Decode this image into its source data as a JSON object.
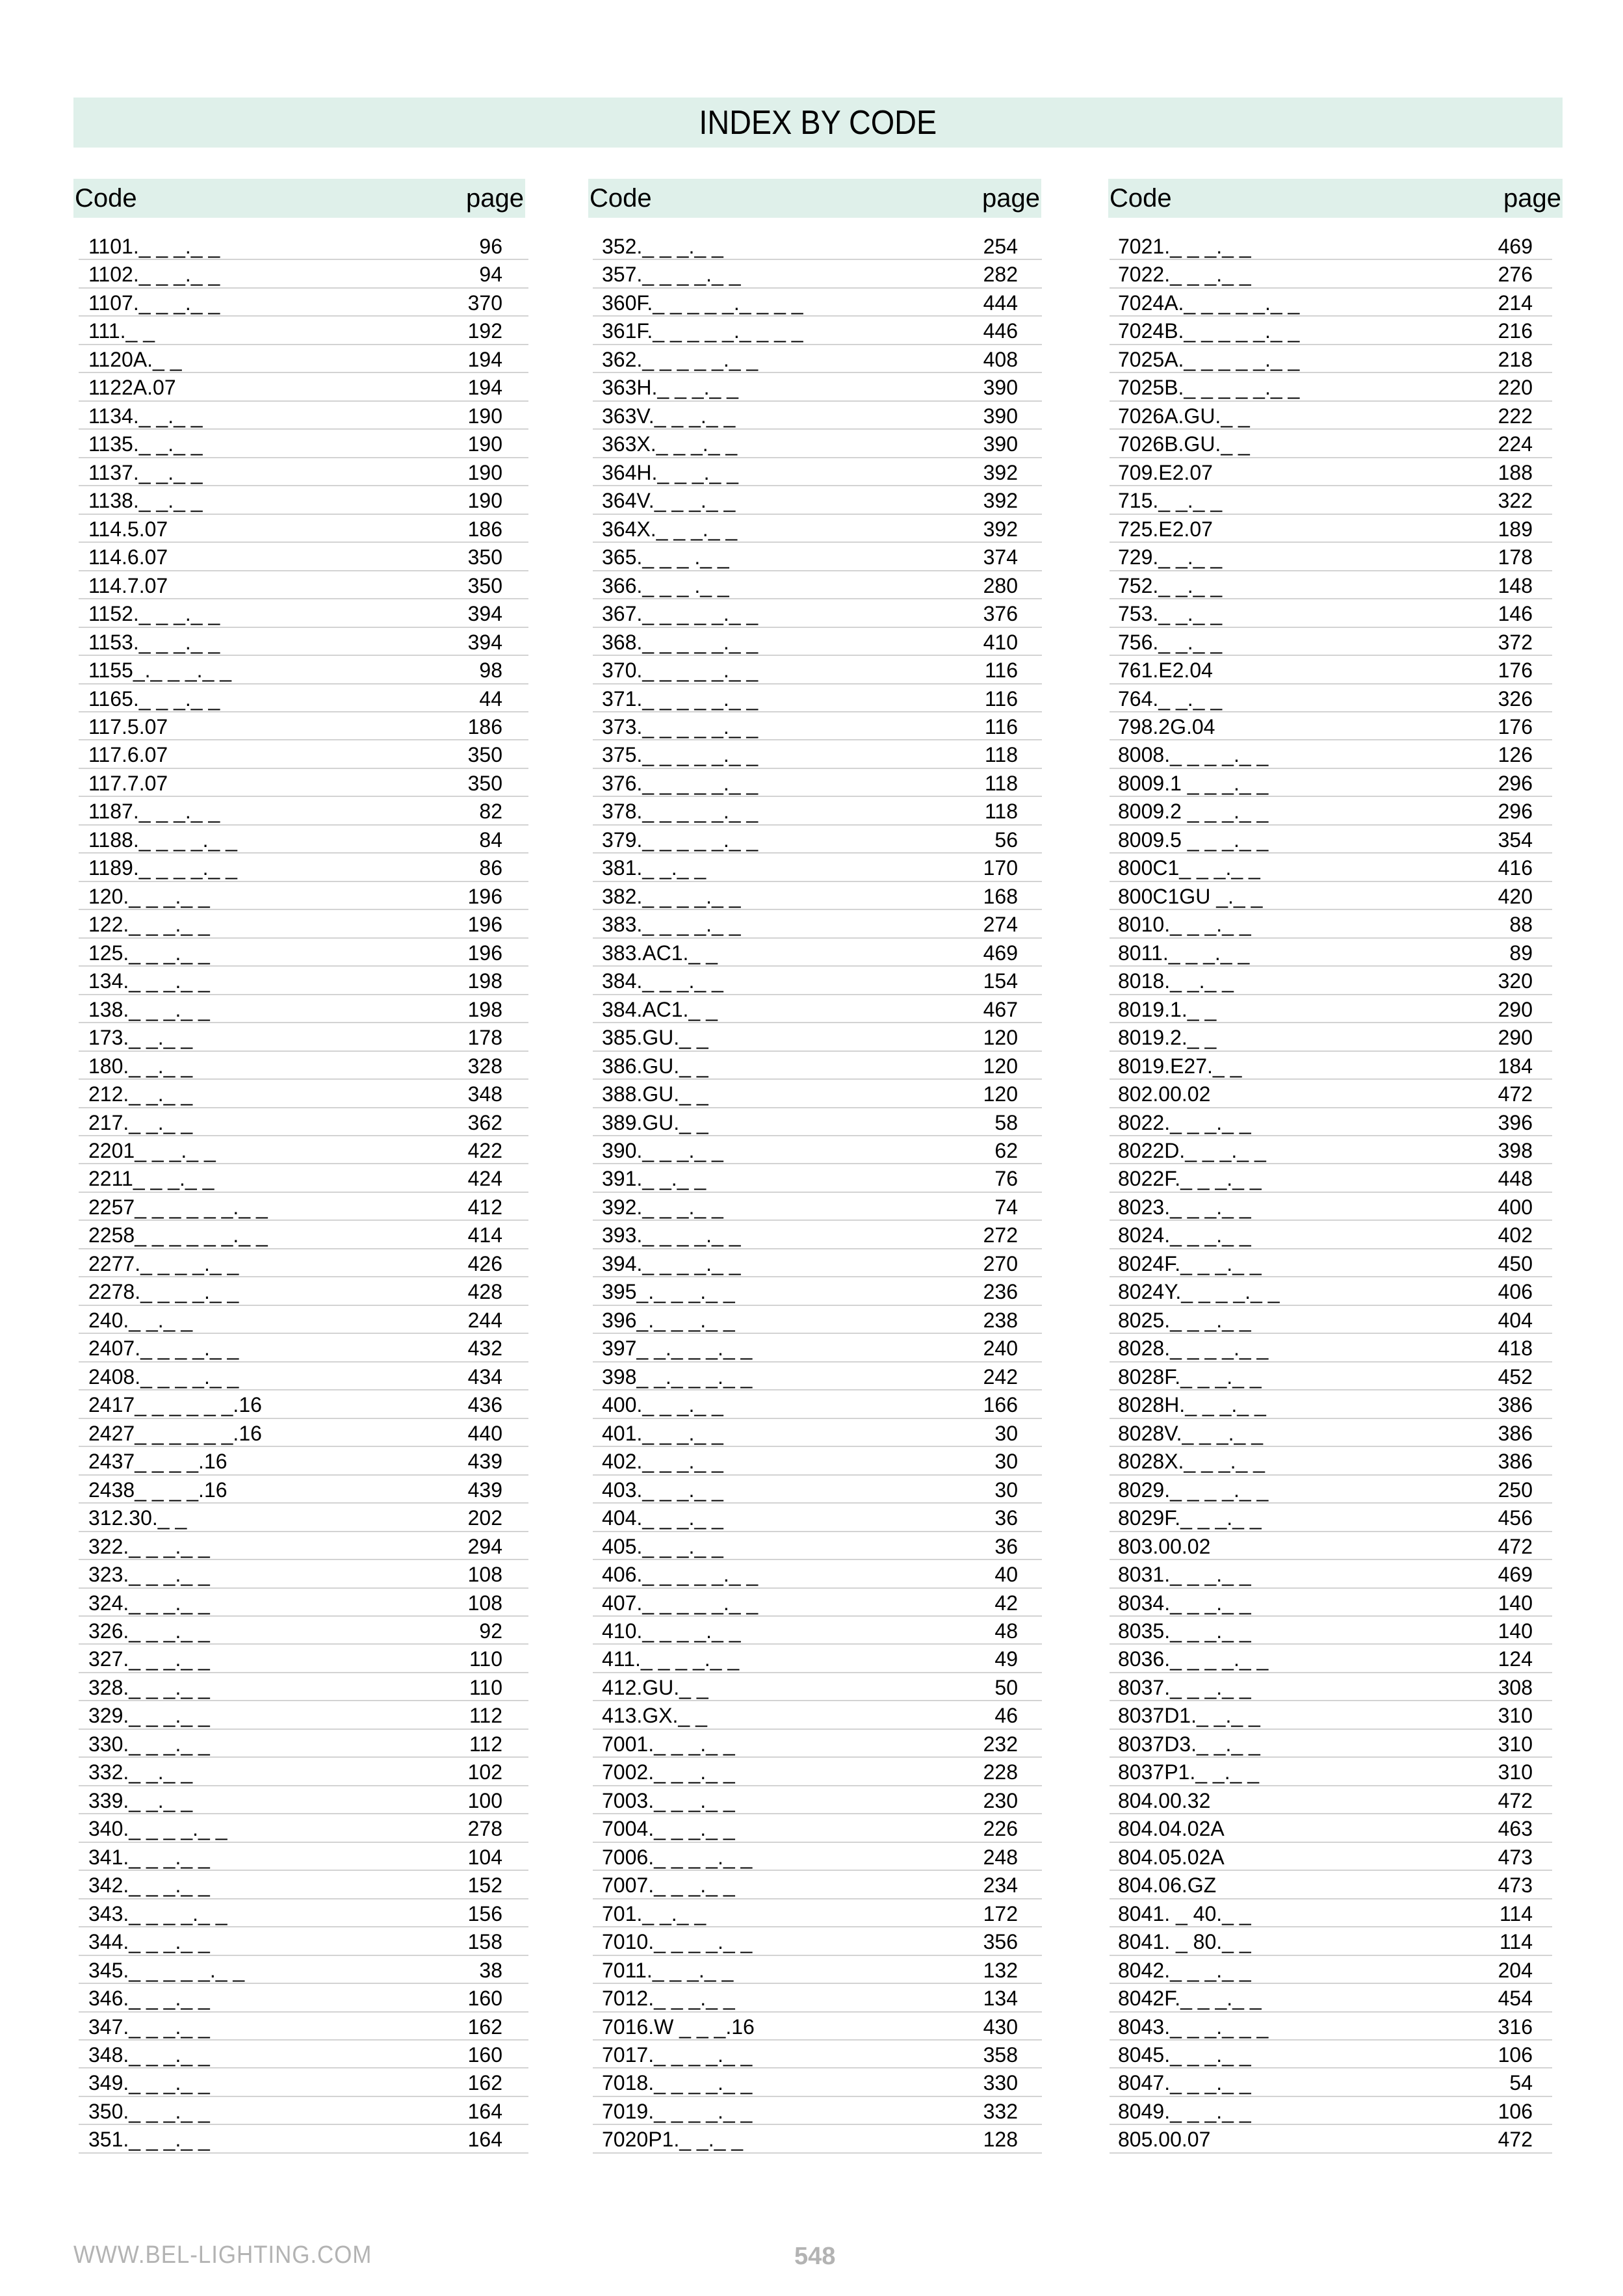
{
  "title": "INDEX BY CODE",
  "header": {
    "code_label": "Code",
    "page_label": "page"
  },
  "colors": {
    "header_bg": "#dff0ea",
    "row_divider": "#d3d3d3",
    "footer_text": "#b3b3b3"
  },
  "columns": [
    {
      "rows": [
        [
          "1101._ _ _._ _",
          "96"
        ],
        [
          "1102._ _ _._ _",
          "94"
        ],
        [
          "1107._ _ _._ _",
          "370"
        ],
        [
          "111._ _",
          "192"
        ],
        [
          "1120A._ _",
          "194"
        ],
        [
          "1122A.07",
          "194"
        ],
        [
          "1134._ _._ _",
          "190"
        ],
        [
          "1135._ _._ _",
          "190"
        ],
        [
          "1137._ _._ _",
          "190"
        ],
        [
          "1138._ _._ _",
          "190"
        ],
        [
          "114.5.07",
          "186"
        ],
        [
          "114.6.07",
          "350"
        ],
        [
          "114.7.07",
          "350"
        ],
        [
          "1152._ _ _._ _",
          "394"
        ],
        [
          "1153._ _ _._ _",
          "394"
        ],
        [
          "1155_._ _ _._ _",
          "98"
        ],
        [
          "1165._ _ _._ _",
          "44"
        ],
        [
          "117.5.07",
          "186"
        ],
        [
          "117.6.07",
          "350"
        ],
        [
          "117.7.07",
          "350"
        ],
        [
          "1187._ _ _._ _",
          "82"
        ],
        [
          "1188._ _ _ _._ _",
          "84"
        ],
        [
          "1189._ _ _ _._ _",
          "86"
        ],
        [
          "120._ _ _._ _",
          "196"
        ],
        [
          "122._ _ _._ _",
          "196"
        ],
        [
          "125._ _ _._ _",
          "196"
        ],
        [
          "134._ _ _._ _",
          "198"
        ],
        [
          "138._ _ _._ _",
          "198"
        ],
        [
          "173._ _._ _",
          "178"
        ],
        [
          "180._ _._ _",
          "328"
        ],
        [
          "212._ _._ _",
          "348"
        ],
        [
          "217._ _._ _",
          "362"
        ],
        [
          "2201_ _ _._ _",
          "422"
        ],
        [
          "2211_ _ _._ _",
          "424"
        ],
        [
          "2257_ _ _ _ _ _._ _",
          "412"
        ],
        [
          "2258_ _ _ _ _ _._ _",
          "414"
        ],
        [
          "2277._ _ _ _._ _",
          "426"
        ],
        [
          "2278._ _ _ _._ _",
          "428"
        ],
        [
          "240._ _._ _",
          "244"
        ],
        [
          "2407._ _ _ _._ _",
          "432"
        ],
        [
          "2408._ _ _ _._ _",
          "434"
        ],
        [
          "2417_ _ _ _ _ _.16",
          "436"
        ],
        [
          "2427_ _ _ _ _ _.16",
          "440"
        ],
        [
          "2437_ _ _ _.16",
          "439"
        ],
        [
          "2438_ _ _ _.16",
          "439"
        ],
        [
          "312.30._ _",
          "202"
        ],
        [
          "322._ _ _._ _",
          "294"
        ],
        [
          "323._ _ _._ _",
          "108"
        ],
        [
          "324._ _ _._ _",
          "108"
        ],
        [
          "326._ _ _._ _",
          "92"
        ],
        [
          "327._ _ _._ _",
          "110"
        ],
        [
          "328._ _ _._ _",
          "110"
        ],
        [
          "329._ _ _._ _",
          "112"
        ],
        [
          "330._ _ _._ _",
          "112"
        ],
        [
          "332._ _._ _",
          "102"
        ],
        [
          "339._ _._ _",
          "100"
        ],
        [
          "340._ _ _ _._ _",
          "278"
        ],
        [
          "341._ _ _._ _",
          "104"
        ],
        [
          "342._ _ _._ _",
          "152"
        ],
        [
          "343._ _ _ _._ _",
          "156"
        ],
        [
          "344._ _ _._ _",
          "158"
        ],
        [
          "345._ _ _ _ _._ _",
          "38"
        ],
        [
          "346._ _ _._ _",
          "160"
        ],
        [
          "347._ _ _._ _",
          "162"
        ],
        [
          "348._ _ _._ _",
          "160"
        ],
        [
          "349._ _ _._ _",
          "162"
        ],
        [
          "350._ _ _._ _",
          "164"
        ],
        [
          "351._ _ _._ _",
          "164"
        ]
      ]
    },
    {
      "rows": [
        [
          "352._ _ _._ _",
          "254"
        ],
        [
          "357._ _ _ _._ _",
          "282"
        ],
        [
          "360F._ _ _ _ _._ _ _ _",
          "444"
        ],
        [
          "361F._ _ _ _ _._ _ _ _",
          "446"
        ],
        [
          "362._ _ _ _ _._ _",
          "408"
        ],
        [
          "363H._ _ _._ _",
          "390"
        ],
        [
          "363V._ _ _._ _",
          "390"
        ],
        [
          "363X._ _ _._ _",
          "390"
        ],
        [
          "364H._ _ _._ _",
          "392"
        ],
        [
          "364V._ _ _._ _",
          "392"
        ],
        [
          "364X._ _ _._ _",
          "392"
        ],
        [
          "365._ _ _ ._ _",
          "374"
        ],
        [
          "366._ _ _ ._ _",
          "280"
        ],
        [
          "367._ _ _ _ _._ _",
          "376"
        ],
        [
          "368._ _ _ _ _._ _",
          "410"
        ],
        [
          "370._ _ _ _ _._ _",
          "116"
        ],
        [
          "371._ _ _ _ _._ _",
          "116"
        ],
        [
          "373._ _ _ _ _._ _",
          "116"
        ],
        [
          "375._ _ _ _ _._ _",
          "118"
        ],
        [
          "376._ _ _ _ _._ _",
          "118"
        ],
        [
          "378._ _ _ _ _._ _",
          "118"
        ],
        [
          "379._ _ _ _ _._ _",
          "56"
        ],
        [
          "381._ _._ _",
          "170"
        ],
        [
          "382._ _ _ _._ _",
          "168"
        ],
        [
          "383._ _ _ _._ _",
          "274"
        ],
        [
          "383.AC1._ _",
          "469"
        ],
        [
          "384._ _ _._ _",
          "154"
        ],
        [
          "384.AC1._ _",
          "467"
        ],
        [
          "385.GU._ _",
          "120"
        ],
        [
          "386.GU._ _",
          "120"
        ],
        [
          "388.GU._ _",
          "120"
        ],
        [
          "389.GU._ _",
          "58"
        ],
        [
          "390._ _ _._ _",
          "62"
        ],
        [
          "391._ _._ _",
          "76"
        ],
        [
          "392._ _ _._ _",
          "74"
        ],
        [
          "393._ _ _ _._ _",
          "272"
        ],
        [
          "394._ _ _ _._ _",
          "270"
        ],
        [
          "395_._ _ _._ _",
          "236"
        ],
        [
          "396_._ _ _._ _",
          "238"
        ],
        [
          "397_ _._ _ _._ _",
          "240"
        ],
        [
          "398_ _._ _ _._ _",
          "242"
        ],
        [
          "400._ _ _._ _",
          "166"
        ],
        [
          "401._ _ _._ _",
          "30"
        ],
        [
          "402._ _ _._ _",
          "30"
        ],
        [
          "403._ _ _._ _",
          "30"
        ],
        [
          "404._ _ _._ _",
          "36"
        ],
        [
          "405._ _ _._ _",
          "36"
        ],
        [
          "406._ _ _ _ _._ _",
          "40"
        ],
        [
          "407._ _ _ _ _._ _",
          "42"
        ],
        [
          "410._ _ _ _._ _",
          "48"
        ],
        [
          "411._ _ _ _._ _",
          "49"
        ],
        [
          "412.GU._ _",
          "50"
        ],
        [
          "413.GX._ _",
          "46"
        ],
        [
          "7001._ _ _._ _",
          "232"
        ],
        [
          "7002._ _ _._ _",
          "228"
        ],
        [
          "7003._ _ _._ _",
          "230"
        ],
        [
          "7004._ _ _._ _",
          "226"
        ],
        [
          "7006._ _ _ _._ _",
          "248"
        ],
        [
          "7007._ _ _._ _",
          "234"
        ],
        [
          "701._ _._ _",
          "172"
        ],
        [
          "7010._ _ _ _._ _",
          "356"
        ],
        [
          "7011._ _ _._ _",
          "132"
        ],
        [
          "7012._ _ _._ _",
          "134"
        ],
        [
          "7016.W _ _ _.16",
          "430"
        ],
        [
          "7017._ _ _ _._ _",
          "358"
        ],
        [
          "7018._ _ _ _._ _",
          "330"
        ],
        [
          "7019._ _ _ _._ _",
          "332"
        ],
        [
          "7020P1._ _._ _",
          "128"
        ]
      ]
    },
    {
      "rows": [
        [
          "7021._ _ _._ _",
          "469"
        ],
        [
          "7022._ _ _._ _",
          "276"
        ],
        [
          "7024A._ _ _ _ _._ _",
          "214"
        ],
        [
          "7024B._ _ _ _ _._ _",
          "216"
        ],
        [
          "7025A._ _ _ _ _._ _",
          "218"
        ],
        [
          "7025B._ _ _ _ _._ _",
          "220"
        ],
        [
          "7026A.GU._ _",
          "222"
        ],
        [
          "7026B.GU._ _",
          "224"
        ],
        [
          "709.E2.07",
          "188"
        ],
        [
          "715._ _._ _",
          "322"
        ],
        [
          "725.E2.07",
          "189"
        ],
        [
          "729._ _._ _",
          "178"
        ],
        [
          "752._ _._ _",
          "148"
        ],
        [
          "753._ _._ _",
          "146"
        ],
        [
          "756._ _._ _",
          "372"
        ],
        [
          "761.E2.04",
          "176"
        ],
        [
          "764._ _._ _",
          "326"
        ],
        [
          "798.2G.04",
          "176"
        ],
        [
          "8008._ _ _ _._ _",
          "126"
        ],
        [
          "8009.1 _ _ _._ _",
          "296"
        ],
        [
          "8009.2 _ _ _._ _",
          "296"
        ],
        [
          "8009.5 _ _ _._ _",
          "354"
        ],
        [
          "800C1_ _ _._ _",
          "416"
        ],
        [
          "800C1GU _._ _",
          "420"
        ],
        [
          "8010._ _ _._ _",
          "88"
        ],
        [
          "8011._ _ _._ _",
          "89"
        ],
        [
          "8018._ _._ _",
          "320"
        ],
        [
          "8019.1._ _",
          "290"
        ],
        [
          "8019.2._ _",
          "290"
        ],
        [
          "8019.E27._ _",
          "184"
        ],
        [
          "802.00.02",
          "472"
        ],
        [
          "8022._ _ _._ _",
          "396"
        ],
        [
          "8022D._ _ _._ _",
          "398"
        ],
        [
          "8022F._ _ _._ _",
          "448"
        ],
        [
          "8023._ _ _._ _",
          "400"
        ],
        [
          "8024._ _ _._ _",
          "402"
        ],
        [
          "8024F._ _ _._ _",
          "450"
        ],
        [
          "8024Y._ _ _ _._ _",
          "406"
        ],
        [
          "8025._ _ _._ _",
          "404"
        ],
        [
          "8028._ _ _ _._ _",
          "418"
        ],
        [
          "8028F._ _ _._ _",
          "452"
        ],
        [
          "8028H._ _ _._ _",
          "386"
        ],
        [
          "8028V._ _ _._ _",
          "386"
        ],
        [
          "8028X._ _ _._ _",
          "386"
        ],
        [
          "8029._ _ _ _._ _",
          "250"
        ],
        [
          "8029F._ _ _._ _",
          "456"
        ],
        [
          "803.00.02",
          "472"
        ],
        [
          "8031._ _ _._ _",
          "469"
        ],
        [
          "8034._ _ _._ _",
          "140"
        ],
        [
          "8035._ _ _._ _",
          "140"
        ],
        [
          "8036._ _ _ _._ _",
          "124"
        ],
        [
          "8037._ _ _._ _",
          "308"
        ],
        [
          "8037D1._ _._ _",
          "310"
        ],
        [
          "8037D3._ _._ _",
          "310"
        ],
        [
          "8037P1._ _._ _",
          "310"
        ],
        [
          "804.00.32",
          "472"
        ],
        [
          "804.04.02A",
          "463"
        ],
        [
          "804.05.02A",
          "473"
        ],
        [
          "804.06.GZ",
          "473"
        ],
        [
          "8041. _ 40._ _",
          "114"
        ],
        [
          "8041. _ 80._ _",
          "114"
        ],
        [
          "8042._ _ _._ _",
          "204"
        ],
        [
          "8042F._ _ _._ _",
          "454"
        ],
        [
          "8043._ _ _._ _ _",
          "316"
        ],
        [
          "8045._ _ _._ _",
          "106"
        ],
        [
          "8047._ _ _._ _",
          "54"
        ],
        [
          "8049._ _ _._ _",
          "106"
        ],
        [
          "805.00.07",
          "472"
        ]
      ]
    }
  ],
  "footer": {
    "website": "WWW.BEL-LIGHTING.COM",
    "page_number": "548"
  }
}
